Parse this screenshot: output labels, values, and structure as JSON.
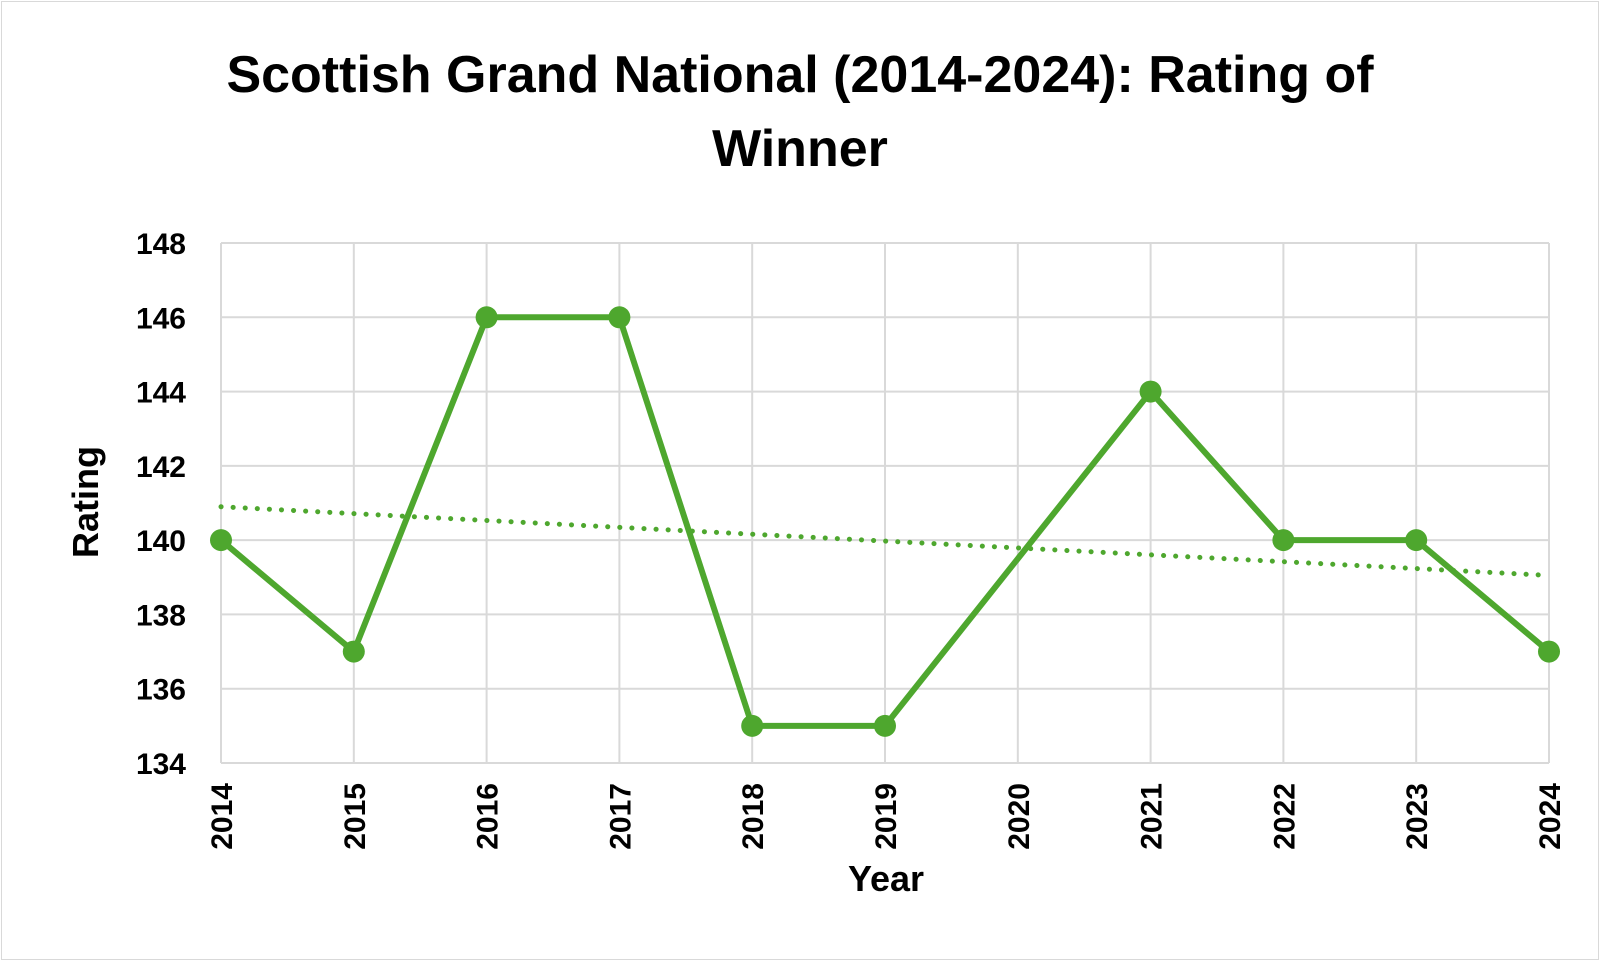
{
  "chart_data": {
    "type": "line",
    "title_line1": "Scottish Grand National (2014-2024): Rating of",
    "title_line2": "Winner",
    "xlabel": "Year",
    "ylabel": "Rating",
    "categories": [
      "2014",
      "2015",
      "2016",
      "2017",
      "2018",
      "2019",
      "2020",
      "2021",
      "2022",
      "2023",
      "2024"
    ],
    "y_ticks": [
      "134",
      "136",
      "138",
      "140",
      "142",
      "144",
      "146",
      "148"
    ],
    "ylim": [
      134,
      148
    ],
    "grid": true,
    "series": [
      {
        "values": [
          140,
          137,
          146,
          146,
          135,
          135,
          139.5,
          144,
          140,
          140,
          137
        ],
        "color": "#4ea72e",
        "marker": "circle",
        "marker_at_index": [
          true,
          true,
          true,
          true,
          true,
          true,
          false,
          true,
          true,
          true,
          true
        ]
      }
    ],
    "trendline": {
      "style": "dotted",
      "color": "#4ea72e",
      "start": 140.9,
      "end": 139.05
    }
  }
}
